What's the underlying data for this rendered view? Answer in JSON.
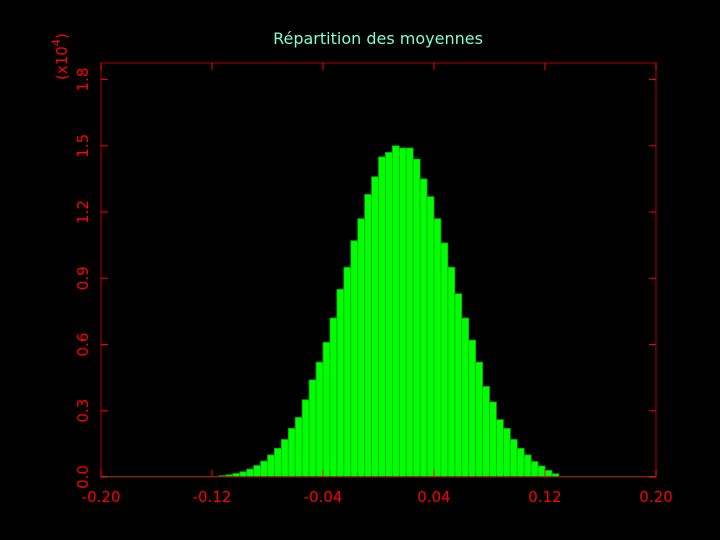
{
  "chart_data": {
    "type": "bar",
    "title": "Répartition des moyennes",
    "y_multiplier_label": "(x10",
    "y_multiplier_exponent": "4",
    "y_multiplier_close": ")",
    "xlim": [
      -0.2,
      0.2
    ],
    "ylim": [
      0,
      1.875
    ],
    "x_ticks": [
      -0.2,
      -0.12,
      -0.04,
      0.04,
      0.12,
      0.2
    ],
    "x_tick_labels": [
      "-0.20",
      "-0.12",
      "-0.04",
      "0.04",
      "0.12",
      "0.20"
    ],
    "y_ticks": [
      0,
      0.3,
      0.6,
      0.9,
      1.2,
      1.5,
      1.8
    ],
    "y_tick_labels": [
      "0.0",
      "0.3",
      "0.6",
      "0.9",
      "1.2",
      "1.5",
      "1.8"
    ],
    "bin_width": 0.005,
    "x": [
      -0.1175,
      -0.1125,
      -0.1075,
      -0.1025,
      -0.0975,
      -0.0925,
      -0.0875,
      -0.0825,
      -0.0775,
      -0.0725,
      -0.0675,
      -0.0625,
      -0.0575,
      -0.0525,
      -0.0475,
      -0.0425,
      -0.0375,
      -0.0325,
      -0.0275,
      -0.0225,
      -0.0175,
      -0.0125,
      -0.0075,
      -0.0025,
      0.0025,
      0.0075,
      0.0125,
      0.0175,
      0.0225,
      0.0275,
      0.0325,
      0.0375,
      0.0425,
      0.0475,
      0.0525,
      0.0575,
      0.0625,
      0.0675,
      0.0725,
      0.0775,
      0.0825,
      0.0875,
      0.0925,
      0.0975,
      0.1025,
      0.1075
    ],
    "values": [
      0.003,
      0.006,
      0.01,
      0.016,
      0.024,
      0.036,
      0.052,
      0.072,
      0.1,
      0.13,
      0.17,
      0.22,
      0.27,
      0.35,
      0.44,
      0.52,
      0.61,
      0.72,
      0.85,
      0.95,
      1.07,
      1.17,
      1.28,
      1.36,
      1.45,
      1.47,
      1.5,
      1.49,
      1.49,
      1.44,
      1.35,
      1.27,
      1.17,
      1.06,
      0.95,
      0.83,
      0.72,
      0.62,
      0.52,
      0.41,
      0.34,
      0.26,
      0.22,
      0.17,
      0.13,
      0.1
    ],
    "tail_x": [
      0.1125,
      0.1175,
      0.1225,
      0.1275
    ],
    "tail_values": [
      0.07,
      0.05,
      0.03,
      0.015
    ],
    "colors": {
      "bars": "#00ff00",
      "bar_edge": "#00aa00",
      "axes": "#ff0000",
      "frame": "#8b0000",
      "title": "#7fffd4",
      "background": "#000000"
    },
    "grid": false
  }
}
